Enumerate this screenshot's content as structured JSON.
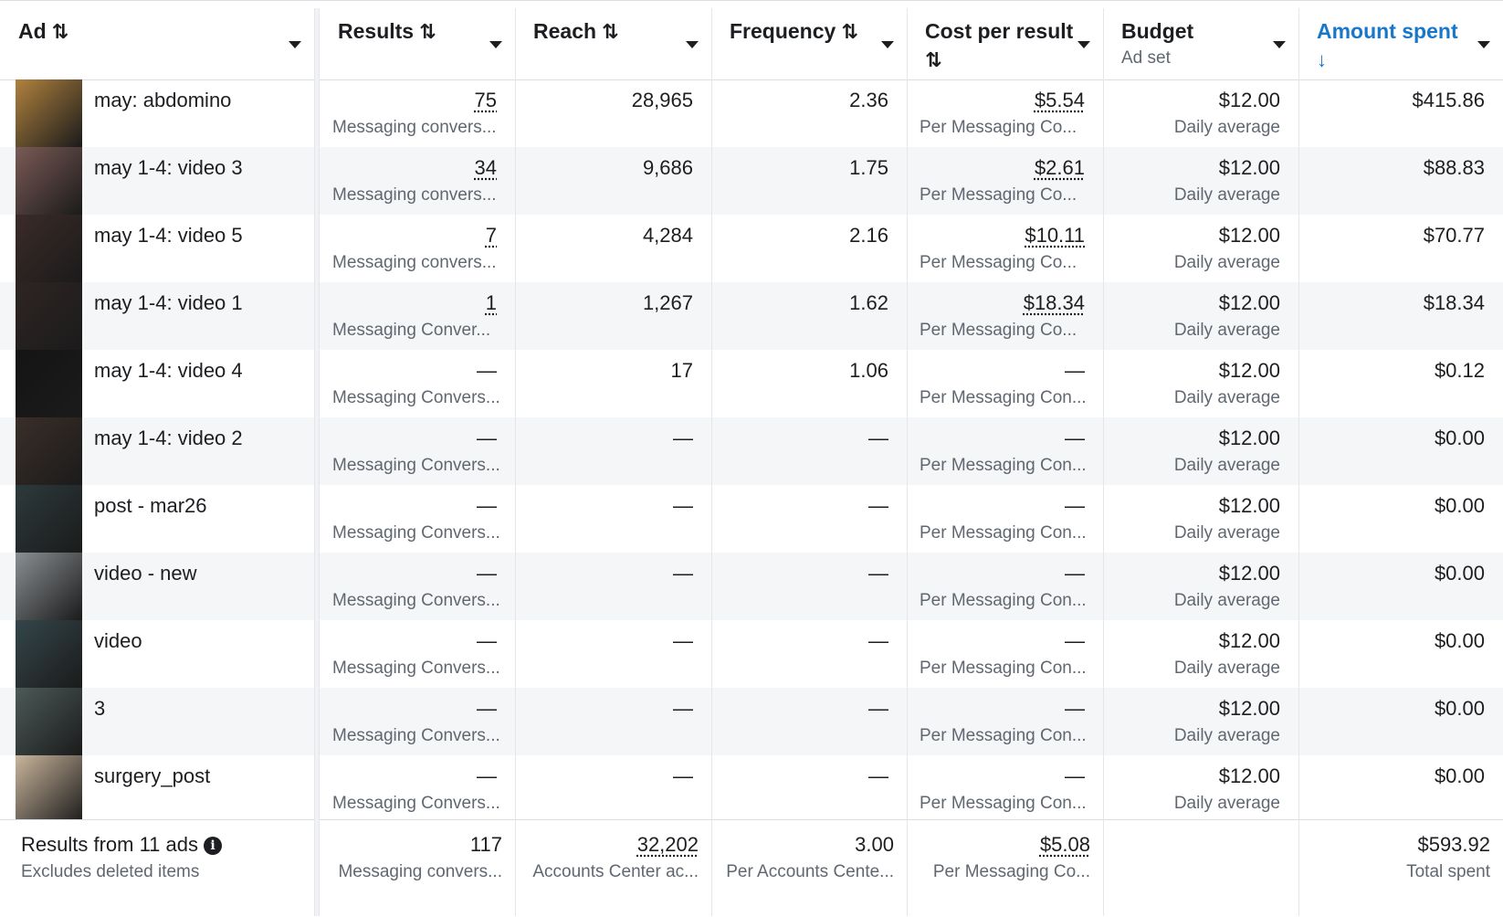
{
  "header": {
    "ad": {
      "label": "Ad",
      "sort": "⇅"
    },
    "results": {
      "label": "Results",
      "sort": "⇅"
    },
    "reach": {
      "label": "Reach",
      "sort": "⇅"
    },
    "frequency": {
      "label": "Frequency",
      "sort": "⇅"
    },
    "cost_per_result": {
      "label": "Cost per result",
      "sort": "⇅"
    },
    "budget": {
      "label": "Budget",
      "sub": "Ad set"
    },
    "amount_spent": {
      "label": "Amount spent",
      "sort": "↓"
    }
  },
  "rows": [
    {
      "name": "may: abdomino",
      "results": "75",
      "results_sub": "Messaging convers...",
      "reach": "28,965",
      "frequency": "2.36",
      "cost": "$5.54",
      "cost_sub": "Per Messaging Co...",
      "budget": "$12.00",
      "budget_sub": "Daily average",
      "spent": "$415.86",
      "thumb_color": "#b0823e"
    },
    {
      "name": "may 1-4: video 3",
      "results": "34",
      "results_sub": "Messaging convers...",
      "reach": "9,686",
      "frequency": "1.75",
      "cost": "$2.61",
      "cost_sub": "Per Messaging Co...",
      "budget": "$12.00",
      "budget_sub": "Daily average",
      "spent": "$88.83",
      "thumb_color": "#7a5a55"
    },
    {
      "name": "may 1-4: video 5",
      "results": "7",
      "results_sub": "Messaging convers...",
      "reach": "4,284",
      "frequency": "2.16",
      "cost": "$10.11",
      "cost_sub": "Per Messaging Co...",
      "budget": "$12.00",
      "budget_sub": "Daily average",
      "spent": "$70.77",
      "thumb_color": "#3b2b28"
    },
    {
      "name": "may 1-4: video 1",
      "results": "1",
      "results_sub": "Messaging Conver...",
      "reach": "1,267",
      "frequency": "1.62",
      "cost": "$18.34",
      "cost_sub": "Per Messaging Co...",
      "budget": "$12.00",
      "budget_sub": "Daily average",
      "spent": "$18.34",
      "thumb_color": "#2e2523"
    },
    {
      "name": "may 1-4: video 4",
      "results": "—",
      "results_sub": "Messaging Convers...",
      "reach": "17",
      "frequency": "1.06",
      "cost": "—",
      "cost_sub": "Per Messaging Con...",
      "budget": "$12.00",
      "budget_sub": "Daily average",
      "spent": "$0.12",
      "thumb_color": "#141414"
    },
    {
      "name": "may 1-4: video 2",
      "results": "—",
      "results_sub": "Messaging Convers...",
      "reach": "—",
      "frequency": "—",
      "cost": "—",
      "cost_sub": "Per Messaging Con...",
      "budget": "$12.00",
      "budget_sub": "Daily average",
      "spent": "$0.00",
      "thumb_color": "#3a2e28"
    },
    {
      "name": "post - mar26",
      "results": "—",
      "results_sub": "Messaging Convers...",
      "reach": "—",
      "frequency": "—",
      "cost": "—",
      "cost_sub": "Per Messaging Con...",
      "budget": "$12.00",
      "budget_sub": "Daily average",
      "spent": "$0.00",
      "thumb_color": "#2c3a3c"
    },
    {
      "name": "video - new",
      "results": "—",
      "results_sub": "Messaging Convers...",
      "reach": "—",
      "frequency": "—",
      "cost": "—",
      "cost_sub": "Per Messaging Con...",
      "budget": "$12.00",
      "budget_sub": "Daily average",
      "spent": "$0.00",
      "thumb_color": "#8a8f93"
    },
    {
      "name": "video",
      "results": "—",
      "results_sub": "Messaging Convers...",
      "reach": "—",
      "frequency": "—",
      "cost": "—",
      "cost_sub": "Per Messaging Con...",
      "budget": "$12.00",
      "budget_sub": "Daily average",
      "spent": "$0.00",
      "thumb_color": "#33464a"
    },
    {
      "name": "3",
      "results": "—",
      "results_sub": "Messaging Convers...",
      "reach": "—",
      "frequency": "—",
      "cost": "—",
      "cost_sub": "Per Messaging Con...",
      "budget": "$12.00",
      "budget_sub": "Daily average",
      "spent": "$0.00",
      "thumb_color": "#4b5a58"
    },
    {
      "name": "surgery_post",
      "results": "—",
      "results_sub": "Messaging Convers...",
      "reach": "—",
      "frequency": "—",
      "cost": "—",
      "cost_sub": "Per Messaging Con...",
      "budget": "$12.00",
      "budget_sub": "Daily average",
      "spent": "$0.00",
      "thumb_color": "#c9b59c"
    }
  ],
  "footer": {
    "title": "Results from 11 ads",
    "info_icon": "i",
    "sub": "Excludes deleted items",
    "results": "117",
    "results_sub": "Messaging convers...",
    "reach": "32,202",
    "reach_sub": "Accounts Center ac...",
    "frequency": "3.00",
    "frequency_sub": "Per Accounts Cente...",
    "cost": "$5.08",
    "cost_sub": "Per Messaging Co...",
    "spent": "$593.92",
    "spent_sub": "Total spent"
  },
  "colors": {
    "accent": "#1877c9",
    "alt_row": "#f5f6f7",
    "muted": "#606770"
  }
}
